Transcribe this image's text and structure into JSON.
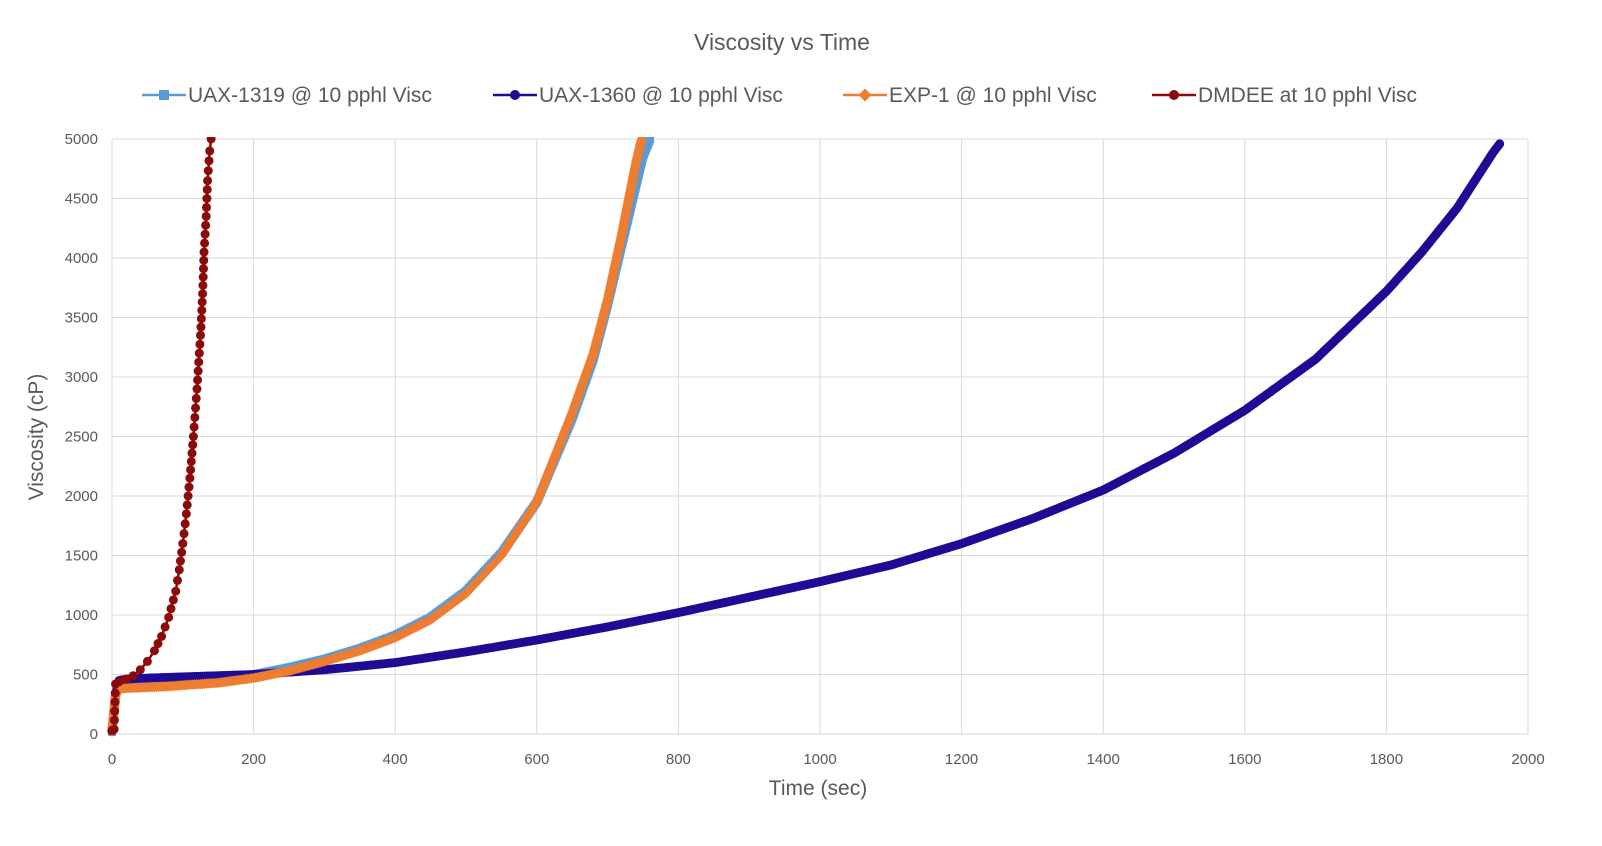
{
  "chart_data": {
    "type": "line",
    "title": "Viscosity vs Time",
    "xlabel": "Time (sec)",
    "ylabel": "Viscosity (cP)",
    "xlim": [
      0,
      2000
    ],
    "ylim": [
      0,
      5000
    ],
    "xticks": [
      0,
      200,
      400,
      600,
      800,
      1000,
      1200,
      1400,
      1600,
      1800,
      2000
    ],
    "yticks": [
      0,
      500,
      1000,
      1500,
      2000,
      2500,
      3000,
      3500,
      4000,
      4500,
      5000
    ],
    "grid": true,
    "legend_position": "top",
    "series": [
      {
        "name": "UAX-1319 @ 10 pphl Visc",
        "color": "#5b9bd5",
        "marker": "square",
        "x": [
          0,
          5,
          10,
          20,
          40,
          60,
          80,
          100,
          150,
          200,
          250,
          300,
          350,
          400,
          450,
          500,
          550,
          600,
          650,
          680,
          700,
          720,
          740,
          750,
          760
        ],
        "y": [
          20,
          330,
          400,
          410,
          420,
          425,
          430,
          440,
          460,
          500,
          560,
          630,
          720,
          830,
          980,
          1200,
          1520,
          1950,
          2650,
          3150,
          3600,
          4100,
          4600,
          4850,
          5000
        ]
      },
      {
        "name": "UAX-1360 @ 10 pphl Visc",
        "color": "#1f0b94",
        "marker": "circle",
        "x": [
          0,
          5,
          10,
          20,
          50,
          100,
          150,
          200,
          300,
          400,
          500,
          600,
          700,
          800,
          900,
          1000,
          1100,
          1200,
          1300,
          1400,
          1500,
          1600,
          1700,
          1800,
          1850,
          1900,
          1950,
          1960
        ],
        "y": [
          20,
          330,
          450,
          460,
          470,
          480,
          490,
          500,
          540,
          600,
          690,
          790,
          900,
          1020,
          1150,
          1280,
          1420,
          1600,
          1810,
          2050,
          2360,
          2720,
          3150,
          3720,
          4050,
          4420,
          4880,
          4960
        ]
      },
      {
        "name": "EXP-1 @ 10 pphl Visc",
        "color": "#ed7d31",
        "marker": "diamond",
        "x": [
          0,
          5,
          10,
          20,
          40,
          60,
          80,
          100,
          150,
          200,
          250,
          300,
          350,
          400,
          450,
          500,
          550,
          600,
          650,
          680,
          700,
          720,
          740,
          748
        ],
        "y": [
          20,
          320,
          380,
          385,
          390,
          395,
          400,
          410,
          430,
          470,
          530,
          610,
          700,
          810,
          960,
          1180,
          1500,
          1950,
          2700,
          3200,
          3650,
          4200,
          4800,
          5000
        ]
      },
      {
        "name": "DMDEE at 10 pphl Visc",
        "color": "#8b0a0a",
        "marker": "circle",
        "x": [
          0,
          3,
          5,
          10,
          20,
          30,
          40,
          50,
          60,
          70,
          80,
          90,
          95,
          100,
          105,
          110,
          115,
          120,
          125,
          128,
          130,
          133,
          135,
          138,
          140
        ],
        "y": [
          30,
          40,
          420,
          440,
          460,
          490,
          540,
          610,
          700,
          820,
          980,
          1200,
          1380,
          1600,
          1850,
          2150,
          2500,
          2900,
          3350,
          3700,
          4050,
          4350,
          4650,
          4900,
          5000
        ]
      }
    ]
  }
}
